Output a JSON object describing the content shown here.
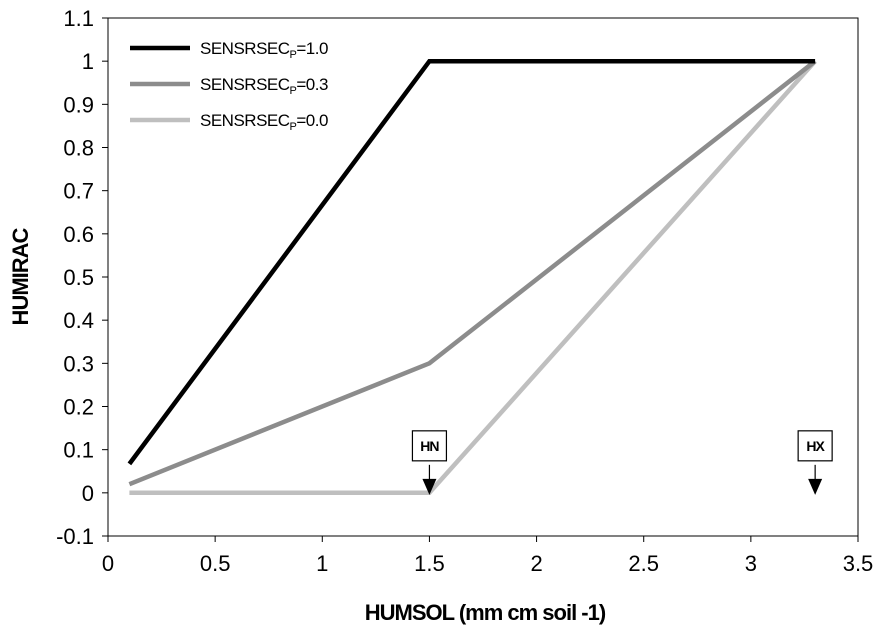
{
  "chart_data": {
    "type": "line",
    "title": "",
    "xlabel": "HUMSOL (mm cm soil -1)",
    "ylabel": "HUMIRAC",
    "xlim": [
      0,
      3.5
    ],
    "ylim": [
      -0.1,
      1.1
    ],
    "x_ticks": [
      0,
      0.5,
      1,
      1.5,
      2,
      2.5,
      3,
      3.5
    ],
    "x_tick_labels": [
      "0",
      "0.5",
      "1",
      "1.5",
      "2",
      "2.5",
      "3",
      "3.5"
    ],
    "y_ticks": [
      -0.1,
      0,
      0.1,
      0.2,
      0.3,
      0.4,
      0.5,
      0.6,
      0.7,
      0.8,
      0.9,
      1,
      1.1
    ],
    "y_tick_labels": [
      "-0.1",
      "0",
      "0.1",
      "0.2",
      "0.3",
      "0.4",
      "0.5",
      "0.6",
      "0.7",
      "0.8",
      "0.9",
      "1",
      "1.1"
    ],
    "grid": false,
    "legend_position": "top-left",
    "series": [
      {
        "name": "SENSRSECp=1.0",
        "name_main": "SENSRSEC",
        "name_sub": "P",
        "name_suffix": "=1.0",
        "color": "#000000",
        "x": [
          0.1,
          1.5,
          3.3
        ],
        "y": [
          0.067,
          1.0,
          1.0
        ]
      },
      {
        "name": "SENSRSECp=0.3",
        "name_main": "SENSRSEC",
        "name_sub": "P",
        "name_suffix": "=0.3",
        "color": "#8c8c8c",
        "x": [
          0.1,
          1.5,
          3.3
        ],
        "y": [
          0.02,
          0.3,
          1.0
        ]
      },
      {
        "name": "SENSRSECp=0.0",
        "name_main": "SENSRSEC",
        "name_sub": "P",
        "name_suffix": "=0.0",
        "color": "#bfbfbf",
        "x": [
          0.1,
          1.5,
          3.3
        ],
        "y": [
          0.0,
          0.0,
          1.0
        ]
      }
    ],
    "annotations": [
      {
        "label": "HN",
        "x": 1.5,
        "arrow_to_y": 0.0
      },
      {
        "label": "HX",
        "x": 3.3,
        "arrow_to_y": 0.0
      }
    ]
  }
}
